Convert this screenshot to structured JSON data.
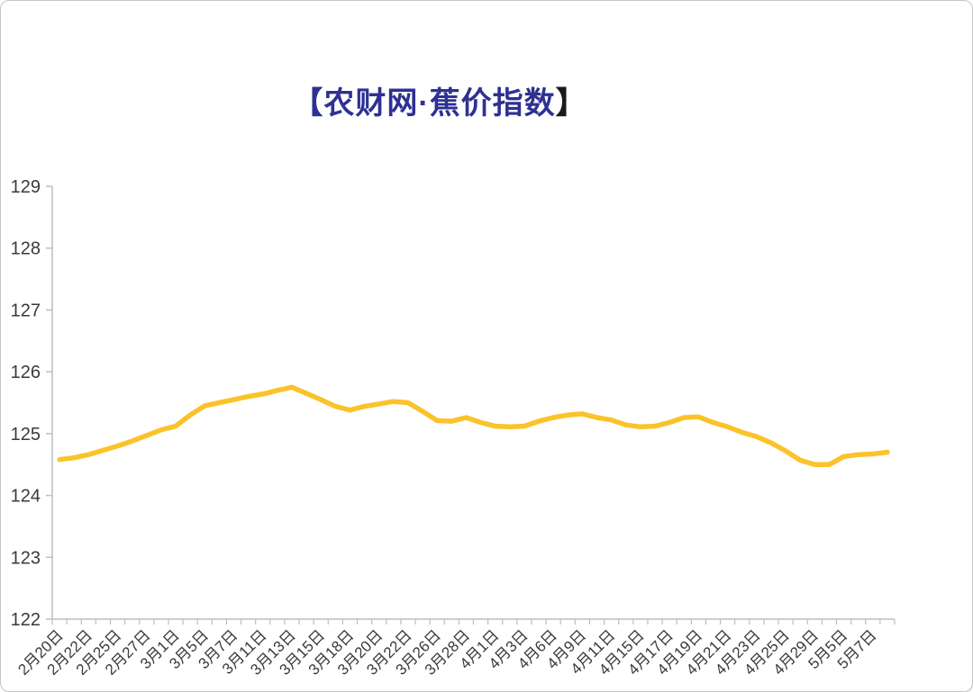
{
  "window": {
    "background": "#ffffff",
    "border_color": "#c6c6c6"
  },
  "chart": {
    "title": "【农财网·蕉价指数",
    "title_close": "】",
    "title_color": "#2E3192",
    "title_close_color": "#1a1a1a"
  },
  "chart_data": {
    "type": "line",
    "title": "【农财网·蕉价指数】",
    "xlabel": "",
    "ylabel": "",
    "ylim": [
      122,
      129
    ],
    "y_ticks": [
      122,
      123,
      124,
      125,
      126,
      127,
      128,
      129
    ],
    "grid": "off",
    "legend": "none",
    "x_labels": [
      "2月20日",
      "2月22日",
      "2月25日",
      "2月27日",
      "3月1日",
      "3月5日",
      "3月7日",
      "3月11日",
      "3月13日",
      "3月15日",
      "3月18日",
      "3月20日",
      "3月22日",
      "3月26日",
      "3月28日",
      "4月1日",
      "4月3日",
      "4月6日",
      "4月9日",
      "4月11日",
      "4月15日",
      "4月17日",
      "4月19日",
      "4月21日",
      "4月23日",
      "4月25日",
      "4月29日",
      "5月5日",
      "5月7日"
    ],
    "label_every": 2,
    "values": [
      124.58,
      124.61,
      124.66,
      124.73,
      124.8,
      124.88,
      124.97,
      125.06,
      125.12,
      125.3,
      125.45,
      125.5,
      125.55,
      125.6,
      125.64,
      125.7,
      125.75,
      125.65,
      125.55,
      125.44,
      125.38,
      125.44,
      125.48,
      125.52,
      125.5,
      125.36,
      125.21,
      125.2,
      125.26,
      125.18,
      125.12,
      125.11,
      125.12,
      125.2,
      125.26,
      125.3,
      125.32,
      125.26,
      125.22,
      125.14,
      125.11,
      125.12,
      125.18,
      125.26,
      125.27,
      125.18,
      125.11,
      125.02,
      124.95,
      124.85,
      124.72,
      124.57,
      124.5,
      124.5,
      124.63,
      124.66,
      124.67,
      124.7
    ],
    "line_color": "#FBC32A",
    "axis_color": "#BEBEBE",
    "tick_label_color": "#3a3a3a"
  }
}
